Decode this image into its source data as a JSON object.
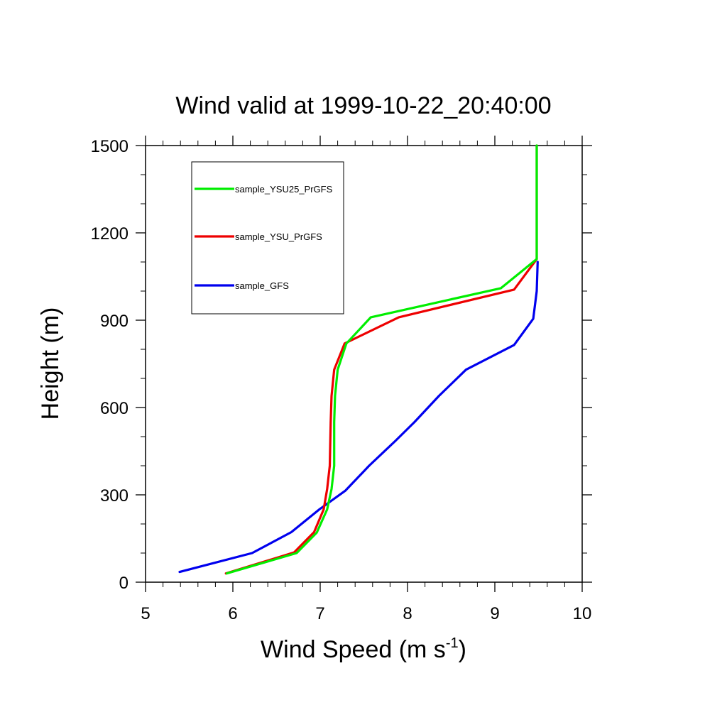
{
  "chart_data": {
    "type": "line",
    "title": "Wind valid at 1999-10-22_20:40:00",
    "xlabel": "Wind Speed (m s",
    "xlabel_superscript": "-1",
    "xlabel_suffix": ")",
    "ylabel": "Height (m)",
    "xlim": [
      5,
      10
    ],
    "ylim": [
      0,
      1500
    ],
    "x_ticks": [
      "5",
      "6",
      "7",
      "8",
      "9",
      "10"
    ],
    "y_ticks": [
      "0",
      "300",
      "600",
      "900",
      "1200",
      "1500"
    ],
    "grid": false,
    "legend_position": "top-left",
    "series": [
      {
        "name": "sample_YSU25_PrGFS",
        "color": "#00ee00",
        "points": [
          [
            5.93,
            30
          ],
          [
            6.73,
            100
          ],
          [
            6.96,
            170
          ],
          [
            7.08,
            250
          ],
          [
            7.13,
            320
          ],
          [
            7.16,
            400
          ],
          [
            7.16,
            550
          ],
          [
            7.17,
            640
          ],
          [
            7.2,
            730
          ],
          [
            7.3,
            820
          ],
          [
            7.58,
            910
          ],
          [
            9.07,
            1010
          ],
          [
            9.48,
            1110
          ],
          [
            9.48,
            1200
          ],
          [
            9.48,
            1300
          ],
          [
            9.48,
            1500
          ]
        ]
      },
      {
        "name": "sample_YSU_PrGFS",
        "color": "#ee0000",
        "points": [
          [
            5.92,
            30
          ],
          [
            6.7,
            102
          ],
          [
            6.93,
            172
          ],
          [
            7.04,
            250
          ],
          [
            7.08,
            320
          ],
          [
            7.11,
            400
          ],
          [
            7.12,
            550
          ],
          [
            7.13,
            640
          ],
          [
            7.16,
            730
          ],
          [
            7.28,
            820
          ],
          [
            7.9,
            910
          ],
          [
            9.22,
            1005
          ],
          [
            9.48,
            1110
          ],
          [
            9.48,
            1200
          ],
          [
            9.48,
            1300
          ],
          [
            9.48,
            1500
          ]
        ]
      },
      {
        "name": "sample_GFS",
        "color": "#0000ee",
        "points": [
          [
            5.39,
            35
          ],
          [
            6.22,
            100
          ],
          [
            6.67,
            172
          ],
          [
            6.99,
            250
          ],
          [
            7.29,
            315
          ],
          [
            7.56,
            400
          ],
          [
            7.86,
            485
          ],
          [
            8.08,
            550
          ],
          [
            8.36,
            640
          ],
          [
            8.67,
            730
          ],
          [
            9.22,
            815
          ],
          [
            9.44,
            905
          ],
          [
            9.48,
            1000
          ],
          [
            9.49,
            1100
          ]
        ]
      }
    ]
  }
}
